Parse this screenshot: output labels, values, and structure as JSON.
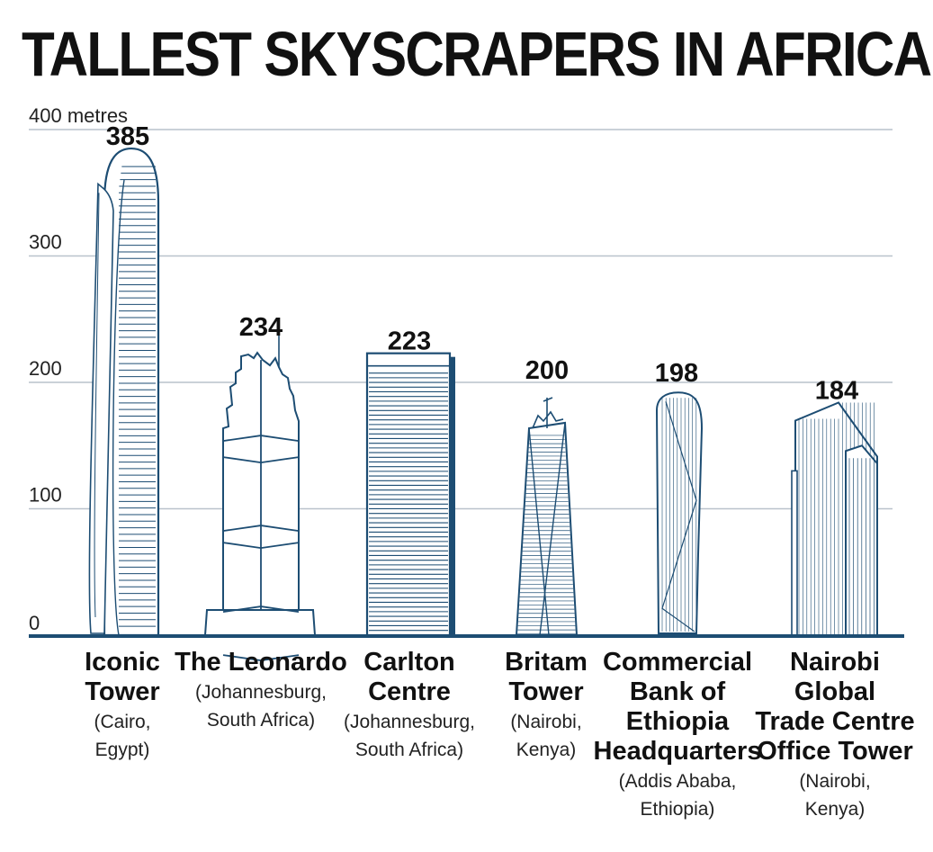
{
  "title": "TALLEST SKYSCRAPERS IN AFRICA",
  "colors": {
    "building": "#1d4d73",
    "grid": "#b9c2cc",
    "baseline": "#1d4d73",
    "text": "#111111"
  },
  "chart_data": {
    "type": "bar",
    "title": "TALLEST SKYSCRAPERS IN AFRICA",
    "ylabel": "metres",
    "yunit_label": "400 metres",
    "ylim": [
      0,
      400
    ],
    "yticks": [
      0,
      100,
      200,
      300,
      400
    ],
    "ytick_labels": [
      "0",
      "100",
      "200",
      "300",
      "400 metres"
    ],
    "grid": true,
    "categories": [
      "Iconic Tower",
      "The Leonardo",
      "Carlton Centre",
      "Britam Tower",
      "Commercial Bank of Ethiopia Headquarters",
      "Nairobi Global Trade Centre Office Tower"
    ],
    "values": [
      385,
      234,
      223,
      200,
      198,
      184
    ],
    "buildings": [
      {
        "name_lines": [
          "Iconic",
          "Tower"
        ],
        "location_lines": [
          "(Cairo,",
          "Egypt)"
        ],
        "height": 385,
        "style": "iconic"
      },
      {
        "name_lines": [
          "The Leonardo"
        ],
        "location_lines": [
          "(Johannesburg,",
          "South Africa)"
        ],
        "height": 234,
        "style": "leonardo"
      },
      {
        "name_lines": [
          "Carlton",
          "Centre"
        ],
        "location_lines": [
          "(Johannesburg,",
          "South Africa)"
        ],
        "height": 223,
        "style": "carlton"
      },
      {
        "name_lines": [
          "Britam",
          "Tower"
        ],
        "location_lines": [
          "(Nairobi,",
          "Kenya)"
        ],
        "height": 200,
        "style": "britam"
      },
      {
        "name_lines": [
          "Commercial",
          "Bank of",
          "Ethiopia",
          "Headquarters"
        ],
        "location_lines": [
          "(Addis Ababa,",
          "Ethiopia)"
        ],
        "height": 198,
        "style": "cbe"
      },
      {
        "name_lines": [
          "Nairobi",
          "Global",
          "Trade Centre",
          "Office Tower"
        ],
        "location_lines": [
          "(Nairobi,",
          "Kenya)"
        ],
        "height": 184,
        "style": "gtc"
      }
    ]
  }
}
